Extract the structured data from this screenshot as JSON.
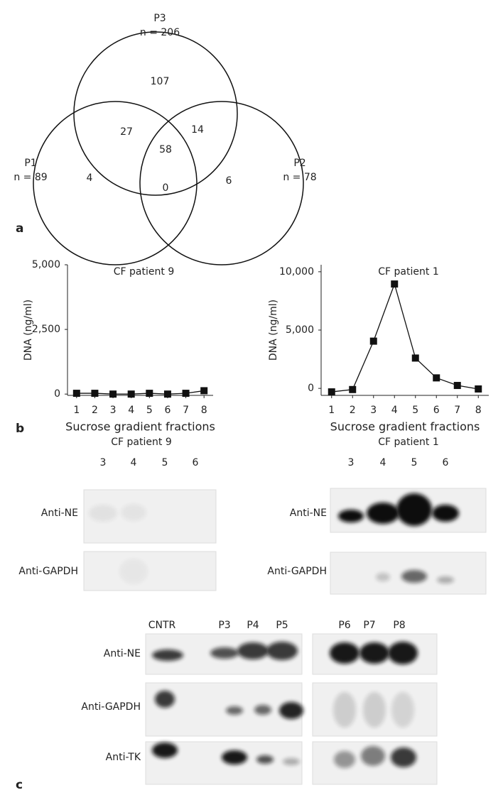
{
  "panel_labels": [
    "a",
    "b",
    "c"
  ],
  "venn": {
    "sets": [
      {
        "name": "P3",
        "size_label": "n = 206"
      },
      {
        "name": "P1",
        "size_label": "n = 89"
      },
      {
        "name": "P2",
        "size_label": "n = 78"
      }
    ],
    "regions": {
      "p3_only": 107,
      "p1_p3": 27,
      "p2_p3": 14,
      "all": 58,
      "p1_only": 4,
      "p1_p2": 0,
      "p2_only": 6
    }
  },
  "chart_data": [
    {
      "type": "line",
      "title": "CF patient 9",
      "x_label": "Sucrose gradient fractions",
      "y_label": "DNA (ng/ml)",
      "x": [
        1,
        2,
        3,
        4,
        5,
        6,
        7,
        8
      ],
      "xlim": [
        0.5,
        8.5
      ],
      "xticks": [
        1,
        2,
        3,
        4,
        5,
        6,
        7,
        8
      ],
      "ylim": [
        -50,
        5000
      ],
      "yticks": [
        0,
        {
          "value": 2500,
          "label": "2,500"
        },
        {
          "value": 5000,
          "label": "5,000"
        }
      ],
      "series": [
        {
          "color": "#111111",
          "values": [
            30,
            30,
            0,
            0,
            30,
            0,
            30,
            130
          ]
        }
      ]
    },
    {
      "type": "line",
      "title": "CF patient 1",
      "x_label": "Sucrose gradient fractions",
      "y_label": "DNA (ng/ml)",
      "x": [
        1,
        2,
        3,
        4,
        5,
        6,
        7,
        8
      ],
      "xlim": [
        0.5,
        8.5
      ],
      "xticks": [
        1,
        2,
        3,
        4,
        5,
        6,
        7,
        8
      ],
      "ylim": [
        -600,
        10600
      ],
      "yticks": [
        0,
        {
          "value": 5000,
          "label": "5,000"
        },
        {
          "value": 10000,
          "label": "10,000"
        }
      ],
      "series": [
        {
          "color": "#111111",
          "values": [
            -300,
            -100,
            4050,
            8950,
            2600,
            900,
            250,
            -50
          ]
        }
      ]
    }
  ],
  "blots": [
    {
      "title": "CF patient 9",
      "lanes": [
        "3",
        "4",
        "5",
        "6"
      ],
      "rows": [
        "Anti-NE",
        "Anti-GAPDH"
      ]
    },
    {
      "title": "CF patient 1",
      "lanes": [
        "3",
        "4",
        "5",
        "6"
      ],
      "rows": [
        "Anti-NE",
        "Anti-GAPDH"
      ]
    },
    {
      "lanes": [
        "CNTR",
        "P3",
        "P4",
        "P5",
        "P6",
        "P7",
        "P8"
      ],
      "rows": [
        "Anti-NE",
        "Anti-GAPDH",
        "Anti-TK"
      ]
    }
  ]
}
